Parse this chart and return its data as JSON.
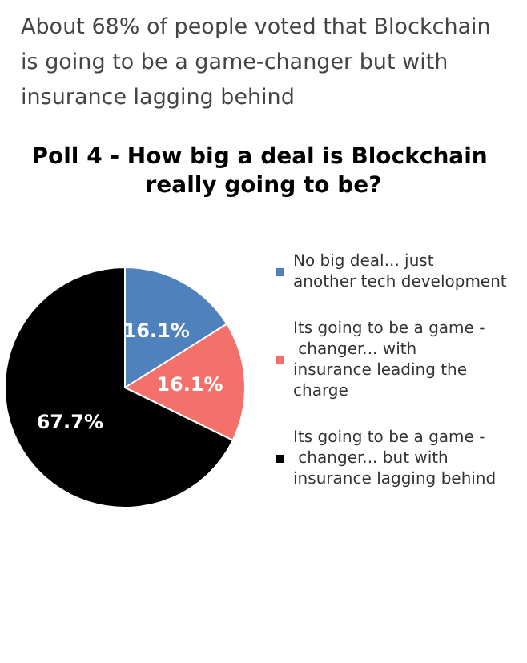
{
  "chart_data": {
    "type": "pie",
    "title": "Poll 4 - How big a deal is Blockchain really going to be?",
    "annotations": [
      "About 68% of people voted that Blockchain is going to be a game-changer but with insurance lagging behind"
    ],
    "categories": [
      "No big deal... just another tech development",
      "Its going to be a game - changer... with insurance leading the charge",
      "Its going to be a game - changer... but with insurance lagging behind"
    ],
    "values": [
      16.1,
      16.1,
      67.7
    ],
    "value_labels": [
      "16.1%",
      "16.1%",
      "67.7%"
    ],
    "colors": [
      "#4f81bd",
      "#f4716b",
      "#000000"
    ],
    "legend": "right"
  }
}
